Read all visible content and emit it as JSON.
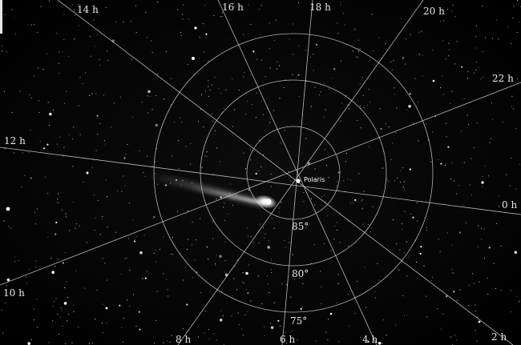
{
  "hour_labels": [
    "0 h",
    "2 h",
    "4 h",
    "6 h",
    "8 h",
    "10 h",
    "12 h",
    "14 h",
    "16 h",
    "18 h",
    "20 h",
    "22 h"
  ],
  "declination_labels": [
    "85°",
    "80°",
    "75°"
  ],
  "star_label": "Polaris",
  "colors": {
    "sky": "#000000",
    "grid": "#d8d8d8",
    "text": "#e8e8e8",
    "comet": "#ffffff"
  }
}
